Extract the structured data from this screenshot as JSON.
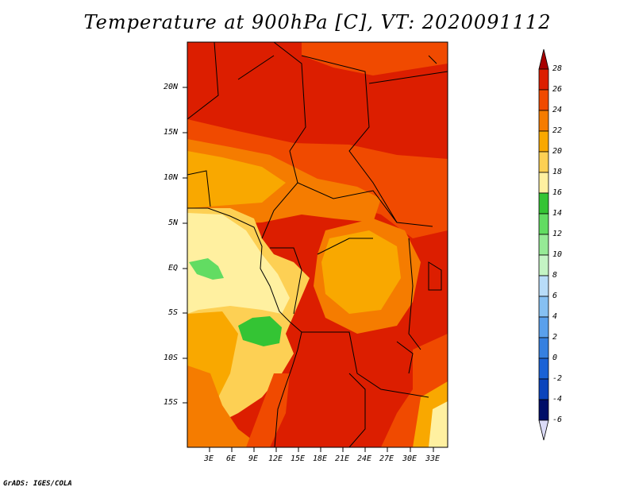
{
  "title": "Temperature at 900hPa [C], VT: 2020091112",
  "credit": "GrADS: IGES/COLA",
  "map": {
    "lat_labels": [
      "20N",
      "15N",
      "10N",
      "5N",
      "EQ",
      "5S",
      "10S",
      "15S"
    ],
    "lon_labels": [
      "3E",
      "6E",
      "9E",
      "12E",
      "15E",
      "18E",
      "21E",
      "24E",
      "27E",
      "30E",
      "33E"
    ]
  },
  "colorbar": {
    "labels": [
      "28",
      "26",
      "24",
      "22",
      "20",
      "18",
      "16",
      "14",
      "12",
      "10",
      "8",
      "6",
      "4",
      "2",
      "0",
      "-2",
      "-4",
      "-6"
    ],
    "colors": [
      "#a80000",
      "#dc1e00",
      "#f04a00",
      "#f57c00",
      "#f9a800",
      "#fdd054",
      "#fff0a0",
      "#34c434",
      "#62dc62",
      "#96ea96",
      "#c4f4c4",
      "#b8dcf8",
      "#86c0f2",
      "#5aa0ec",
      "#3680e0",
      "#1a62d6",
      "#0a44bc",
      "#062c9a",
      "#000e68",
      "#dcdcf8"
    ]
  }
}
